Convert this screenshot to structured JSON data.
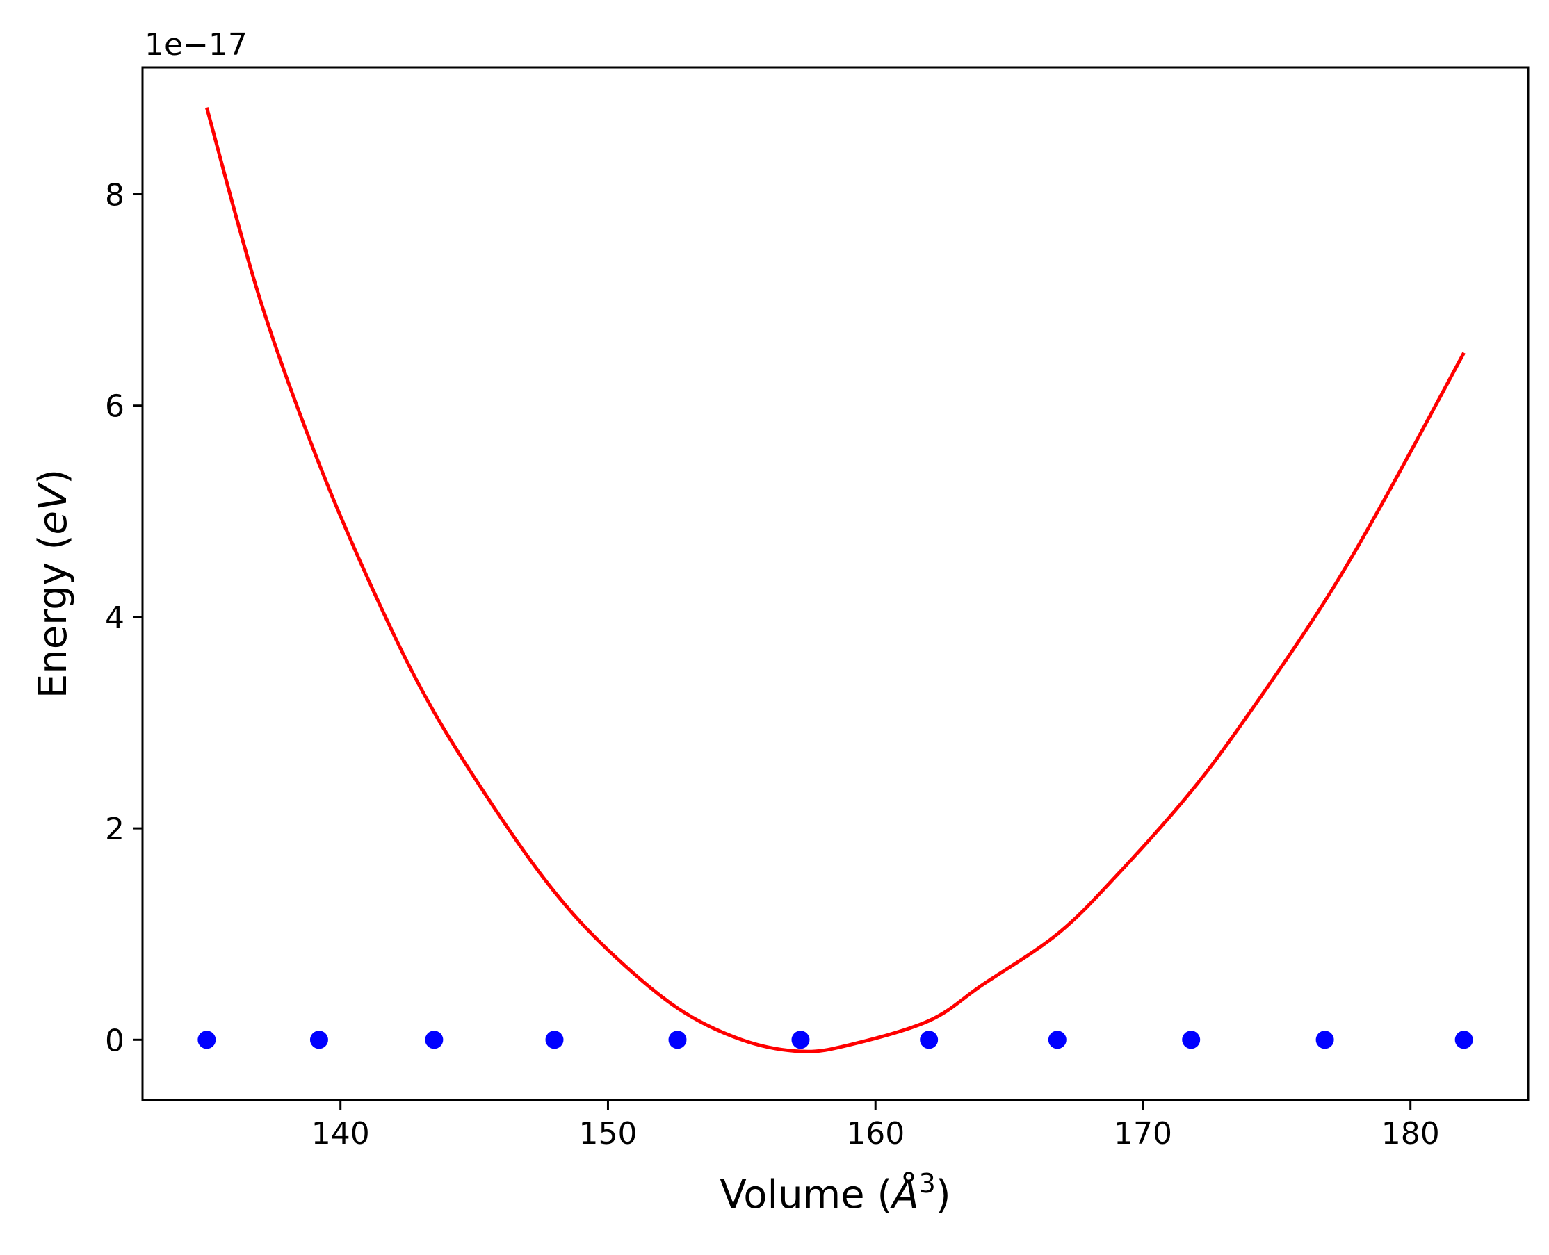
{
  "chart_data": {
    "type": "scatter",
    "xlabel": "Volume",
    "xlabel_unit": "Å",
    "xlabel_unit_exp": "3",
    "ylabel": "Energy",
    "ylabel_unit": "eV",
    "y_offset_text": "1e−17",
    "xlim": [
      132.6,
      184.4
    ],
    "ylim": [
      -0.57,
      9.2
    ],
    "x_ticks": [
      140,
      150,
      160,
      170,
      180
    ],
    "y_ticks": [
      0,
      2,
      4,
      6,
      8
    ],
    "grid": false,
    "series": [
      {
        "kind": "points",
        "color": "#0000ff",
        "x": [
          135.0,
          139.2,
          143.5,
          148.0,
          152.6,
          157.2,
          162.0,
          166.8,
          171.8,
          176.8,
          182.0
        ],
        "y": [
          0,
          0,
          0,
          0,
          0,
          0,
          0,
          0,
          0,
          0,
          0
        ]
      },
      {
        "kind": "line",
        "color": "#ff0000",
        "x": [
          135.0,
          137.0,
          139.2,
          141.5,
          143.5,
          146.0,
          148.0,
          150.0,
          152.6,
          155.0,
          157.2,
          159.0,
          162.0,
          164.0,
          166.8,
          169.0,
          171.8,
          174.0,
          176.8,
          179.0,
          182.0
        ],
        "y": [
          8.82,
          7.0,
          5.45,
          4.1,
          3.1,
          2.1,
          1.4,
          0.85,
          0.3,
          0.0,
          -0.11,
          -0.05,
          0.18,
          0.52,
          1.0,
          1.55,
          2.35,
          3.1,
          4.15,
          5.1,
          6.5
        ]
      }
    ]
  }
}
